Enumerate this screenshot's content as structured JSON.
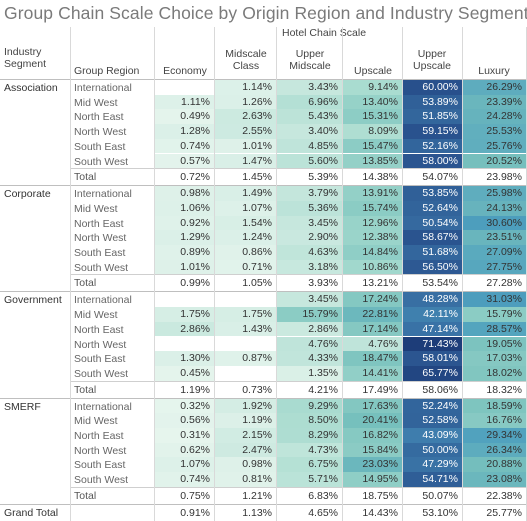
{
  "chart_data": {
    "type": "table",
    "title": "Group Chain Scale Choice by Origin Region and Industry  Segment",
    "column_header_title": "Hotel Chain Scale",
    "row_header_1": "Industry Segment",
    "row_header_2": "Group Region",
    "columns": [
      "Economy",
      "Midscale Class",
      "Upper Midscale",
      "Upscale",
      "Upper Upscale",
      "Luxury"
    ],
    "segments": [
      {
        "name": "Association",
        "rows": [
          {
            "region": "International",
            "values": [
              null,
              "1.14%",
              "3.43%",
              "9.14%",
              "60.00%",
              "26.29%"
            ]
          },
          {
            "region": "Mid West",
            "values": [
              "1.11%",
              "1.26%",
              "6.96%",
              "13.40%",
              "53.89%",
              "23.39%"
            ]
          },
          {
            "region": "North East",
            "values": [
              "0.49%",
              "2.63%",
              "5.43%",
              "15.31%",
              "51.85%",
              "24.28%"
            ]
          },
          {
            "region": "North West",
            "values": [
              "1.28%",
              "2.55%",
              "3.40%",
              "8.09%",
              "59.15%",
              "25.53%"
            ]
          },
          {
            "region": "South East",
            "values": [
              "0.74%",
              "1.01%",
              "4.85%",
              "15.47%",
              "52.16%",
              "25.76%"
            ]
          },
          {
            "region": "South West",
            "values": [
              "0.57%",
              "1.47%",
              "5.60%",
              "13.85%",
              "58.00%",
              "20.52%"
            ]
          }
        ],
        "total": [
          "0.72%",
          "1.45%",
          "5.39%",
          "14.38%",
          "54.07%",
          "23.98%"
        ]
      },
      {
        "name": "Corporate",
        "rows": [
          {
            "region": "International",
            "values": [
              "0.98%",
              "1.49%",
              "3.79%",
              "13.91%",
              "53.85%",
              "25.98%"
            ]
          },
          {
            "region": "Mid West",
            "values": [
              "1.06%",
              "1.07%",
              "5.36%",
              "15.74%",
              "52.64%",
              "24.13%"
            ]
          },
          {
            "region": "North East",
            "values": [
              "0.92%",
              "1.54%",
              "3.45%",
              "12.96%",
              "50.54%",
              "30.60%"
            ]
          },
          {
            "region": "North West",
            "values": [
              "1.29%",
              "1.24%",
              "2.90%",
              "12.38%",
              "58.67%",
              "23.51%"
            ]
          },
          {
            "region": "South East",
            "values": [
              "0.89%",
              "0.86%",
              "4.63%",
              "14.84%",
              "51.68%",
              "27.09%"
            ]
          },
          {
            "region": "South West",
            "values": [
              "1.01%",
              "0.71%",
              "3.18%",
              "10.86%",
              "56.50%",
              "27.75%"
            ]
          }
        ],
        "total": [
          "0.99%",
          "1.05%",
          "3.93%",
          "13.21%",
          "53.54%",
          "27.28%"
        ]
      },
      {
        "name": "Government",
        "rows": [
          {
            "region": "International",
            "values": [
              null,
              null,
              "3.45%",
              "17.24%",
              "48.28%",
              "31.03%"
            ]
          },
          {
            "region": "Mid West",
            "values": [
              "1.75%",
              "1.75%",
              "15.79%",
              "22.81%",
              "42.11%",
              "15.79%"
            ]
          },
          {
            "region": "North East",
            "values": [
              "2.86%",
              "1.43%",
              "2.86%",
              "17.14%",
              "47.14%",
              "28.57%"
            ]
          },
          {
            "region": "North West",
            "values": [
              null,
              null,
              "4.76%",
              "4.76%",
              "71.43%",
              "19.05%"
            ]
          },
          {
            "region": "South East",
            "values": [
              "1.30%",
              "0.87%",
              "4.33%",
              "18.47%",
              "58.01%",
              "17.03%"
            ]
          },
          {
            "region": "South West",
            "values": [
              "0.45%",
              null,
              "1.35%",
              "14.41%",
              "65.77%",
              "18.02%"
            ]
          }
        ],
        "total": [
          "1.19%",
          "0.73%",
          "4.21%",
          "17.49%",
          "58.06%",
          "18.32%"
        ]
      },
      {
        "name": "SMERF",
        "rows": [
          {
            "region": "International",
            "values": [
              "0.32%",
              "1.92%",
              "9.29%",
              "17.63%",
              "52.24%",
              "18.59%"
            ]
          },
          {
            "region": "Mid West",
            "values": [
              "0.56%",
              "1.19%",
              "8.50%",
              "20.41%",
              "52.58%",
              "16.76%"
            ]
          },
          {
            "region": "North East",
            "values": [
              "0.31%",
              "2.15%",
              "8.29%",
              "16.82%",
              "43.09%",
              "29.34%"
            ]
          },
          {
            "region": "North West",
            "values": [
              "0.62%",
              "2.47%",
              "4.73%",
              "15.84%",
              "50.00%",
              "26.34%"
            ]
          },
          {
            "region": "South East",
            "values": [
              "1.07%",
              "0.98%",
              "6.75%",
              "23.03%",
              "47.29%",
              "20.88%"
            ]
          },
          {
            "region": "South West",
            "values": [
              "0.74%",
              "0.81%",
              "5.71%",
              "14.95%",
              "54.71%",
              "23.08%"
            ]
          }
        ],
        "total": [
          "0.75%",
          "1.21%",
          "6.83%",
          "18.75%",
          "50.07%",
          "22.38%"
        ]
      }
    ],
    "total_label": "Total",
    "grand_total_label": "Grand Total",
    "grand_total": [
      "0.91%",
      "1.13%",
      "4.65%",
      "14.43%",
      "53.10%",
      "25.77%"
    ],
    "color_scale": {
      "low": "#e8f5ee",
      "mid": "#9ad5c7",
      "high": "#4a9cbf",
      "top": "#2c5aa0"
    }
  }
}
